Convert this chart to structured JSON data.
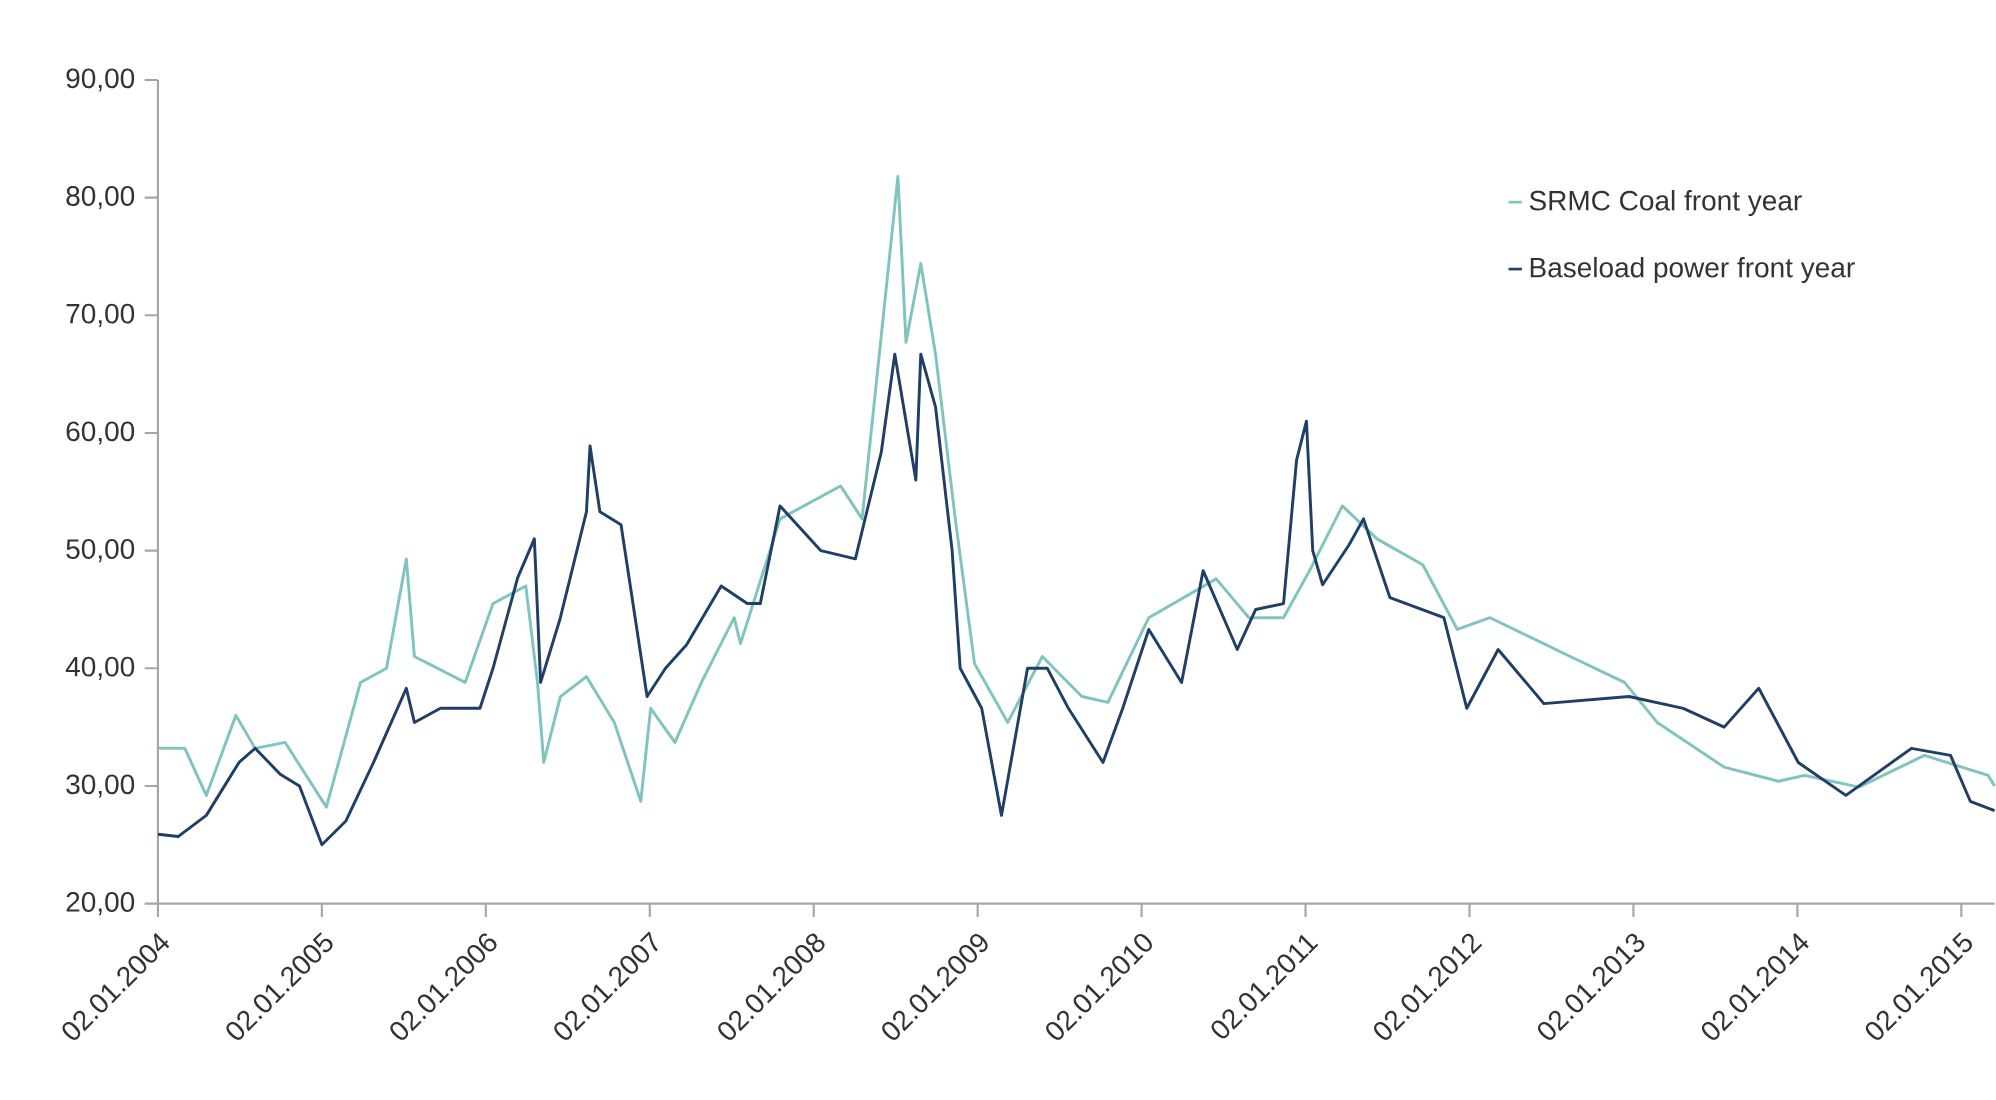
{
  "chart_data": {
    "type": "line",
    "xlim": [
      "2004-01-02",
      "2015-03-17"
    ],
    "xticks": [
      {
        "value": "2004-01-02",
        "label": "02.01.2004"
      },
      {
        "value": "2005-01-02",
        "label": "02.01.2005"
      },
      {
        "value": "2006-01-02",
        "label": "02.01.2006"
      },
      {
        "value": "2007-01-02",
        "label": "02.01.2007"
      },
      {
        "value": "2008-01-02",
        "label": "02.01.2008"
      },
      {
        "value": "2009-01-02",
        "label": "02.01.2009"
      },
      {
        "value": "2010-01-02",
        "label": "02.01.2010"
      },
      {
        "value": "2011-01-02",
        "label": "02.01.2011"
      },
      {
        "value": "2012-01-02",
        "label": "02.01.2012"
      },
      {
        "value": "2013-01-02",
        "label": "02.01.2013"
      },
      {
        "value": "2014-01-02",
        "label": "02.01.2014"
      },
      {
        "value": "2015-01-02",
        "label": "02.01.2015"
      }
    ],
    "ylim": [
      20,
      90
    ],
    "yticks": [
      {
        "value": 20,
        "label": "20,00"
      },
      {
        "value": 30,
        "label": "30,00"
      },
      {
        "value": 40,
        "label": "40,00"
      },
      {
        "value": 50,
        "label": "50,00"
      },
      {
        "value": 60,
        "label": "60,00"
      },
      {
        "value": 70,
        "label": "70,00"
      },
      {
        "value": 80,
        "label": "80,00"
      },
      {
        "value": 90,
        "label": "90,00"
      }
    ],
    "legend": "top right",
    "series": [
      {
        "name": "SRMC Coal front year",
        "color": "#7fc4bf",
        "x": [
          "2004-01-02",
          "2004-03-02",
          "2004-04-19",
          "2004-06-24",
          "2004-08-06",
          "2004-10-12",
          "2005-01-12",
          "2005-03-29",
          "2005-05-26",
          "2005-07-09",
          "2005-07-27",
          "2005-11-17",
          "2006-01-18",
          "2006-04-01",
          "2006-04-27",
          "2006-05-11",
          "2006-06-17",
          "2006-08-14",
          "2006-10-15",
          "2006-12-13",
          "2007-01-04",
          "2007-02-27",
          "2007-04-27",
          "2007-07-09",
          "2007-07-23",
          "2007-10-19",
          "2008-03-02",
          "2008-04-19",
          "2008-07-08",
          "2008-07-26",
          "2008-08-28",
          "2008-09-30",
          "2008-11-13",
          "2008-12-26",
          "2009-03-10",
          "2009-05-26",
          "2009-08-22",
          "2009-10-19",
          "2010-01-18",
          "2010-06-17",
          "2010-08-29",
          "2010-11-14",
          "2011-01-11",
          "2011-03-25",
          "2011-06-10",
          "2011-09-20",
          "2011-12-06",
          "2012-02-17",
          "2012-08-14",
          "2012-12-13",
          "2013-02-24",
          "2013-07-23",
          "2013-11-21",
          "2014-01-18",
          "2014-05-19",
          "2014-10-12",
          "2015-03-03",
          "2015-03-17"
        ],
        "values": [
          33.2,
          33.2,
          29.2,
          36,
          33.2,
          33.7,
          28.2,
          38.8,
          40,
          49.3,
          41,
          38.8,
          45.5,
          47,
          38.8,
          32,
          37.6,
          39.3,
          35.4,
          28.7,
          36.6,
          33.7,
          38.8,
          44.3,
          42.1,
          52.7,
          55.5,
          52.7,
          81.8,
          67.7,
          74.4,
          66.7,
          52.7,
          40.4,
          35.4,
          41,
          37.6,
          37.1,
          44.3,
          47.6,
          44.3,
          44.3,
          48.3,
          53.8,
          51,
          48.8,
          43.3,
          44.3,
          41,
          38.8,
          35.4,
          31.6,
          30.4,
          30.9,
          29.9,
          32.6,
          30.9,
          30
        ]
      },
      {
        "name": "Baseload power front year",
        "color": "#1f3f66",
        "x": [
          "2004-01-02",
          "2004-02-16",
          "2004-04-19",
          "2004-07-01",
          "2004-08-06",
          "2004-10-01",
          "2004-11-13",
          "2005-01-02",
          "2005-02-24",
          "2005-04-27",
          "2005-07-09",
          "2005-07-27",
          "2005-09-23",
          "2005-12-20",
          "2006-01-18",
          "2006-03-14",
          "2006-04-20",
          "2006-05-04",
          "2006-06-17",
          "2006-08-14",
          "2006-08-22",
          "2006-09-13",
          "2006-10-30",
          "2006-12-27",
          "2007-02-06",
          "2007-03-25",
          "2007-06-10",
          "2007-08-07",
          "2007-09-05",
          "2007-10-19",
          "2008-01-18",
          "2008-04-04",
          "2008-06-01",
          "2008-07-01",
          "2008-08-17",
          "2008-08-28",
          "2008-09-30",
          "2008-11-06",
          "2008-11-24",
          "2009-01-11",
          "2009-02-24",
          "2009-04-23",
          "2009-06-06",
          "2009-07-23",
          "2009-10-08",
          "2009-11-21",
          "2010-01-18",
          "2010-04-01",
          "2010-05-19",
          "2010-08-03",
          "2010-09-13",
          "2010-11-14",
          "2010-12-13",
          "2011-01-04",
          "2011-01-18",
          "2011-02-09",
          "2011-04-09",
          "2011-05-11",
          "2011-07-09",
          "2011-11-06",
          "2011-12-27",
          "2012-03-06",
          "2012-06-16",
          "2012-12-23",
          "2013-04-23",
          "2013-07-23",
          "2013-10-08",
          "2014-01-04",
          "2014-04-20",
          "2014-09-13",
          "2014-12-09",
          "2015-01-22",
          "2015-03-17"
        ],
        "values": [
          25.9,
          25.7,
          27.5,
          32,
          33.2,
          31,
          30,
          25,
          27,
          32,
          38.3,
          35.4,
          36.6,
          36.6,
          40,
          47.7,
          51,
          38.8,
          44.3,
          53.3,
          58.9,
          53.3,
          52.2,
          37.6,
          40,
          42,
          47,
          45.5,
          45.5,
          53.8,
          50,
          49.3,
          58.4,
          66.7,
          56,
          66.7,
          62.2,
          50,
          40,
          36.6,
          27.5,
          40,
          40,
          36.6,
          32,
          36.6,
          43.3,
          38.8,
          48.3,
          41.6,
          45,
          45.5,
          57.7,
          61,
          50,
          47.1,
          50.5,
          52.7,
          46,
          44.3,
          36.6,
          41.6,
          37,
          37.6,
          36.6,
          35,
          38.3,
          32,
          29.2,
          33.2,
          32.6,
          28.7,
          27.9
        ]
      }
    ]
  }
}
